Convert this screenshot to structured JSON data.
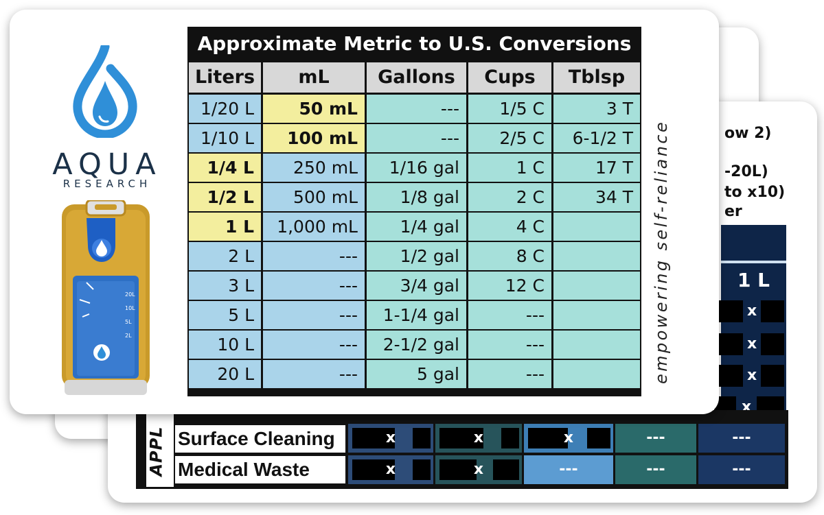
{
  "back_card": {
    "notes": [
      "ow 2)",
      "-20L)",
      "to x10)",
      "er"
    ],
    "dark_column_value": "1 L",
    "mark": "x",
    "side_label": "APPL",
    "rows": [
      {
        "label": "Surface Cleaning",
        "cells": [
          "x",
          "x",
          "x",
          "---",
          "---"
        ]
      },
      {
        "label": "Medical Waste",
        "cells": [
          "x",
          "x",
          "---",
          "---",
          "---"
        ]
      }
    ]
  },
  "logo": {
    "brand": "AQUA",
    "sub": "RESEARCH",
    "icon": "water-drop-icon"
  },
  "device": {
    "icon": "h2go-purifier-device"
  },
  "table": {
    "title": "Approximate Metric to U.S. Conversions",
    "headers": [
      "Liters",
      "mL",
      "Gallons",
      "Cups",
      "Tblsp"
    ],
    "rows": [
      [
        "1/20 L",
        "50 mL",
        "---",
        "1/5 C",
        "3 T"
      ],
      [
        "1/10 L",
        "100 mL",
        "---",
        "2/5 C",
        "6-1/2 T"
      ],
      [
        "1/4 L",
        "250 mL",
        "1/16 gal",
        "1 C",
        "17 T"
      ],
      [
        "1/2 L",
        "500 mL",
        "1/8 gal",
        "2 C",
        "34 T"
      ],
      [
        "1 L",
        "1,000 mL",
        "1/4 gal",
        "4 C",
        ""
      ],
      [
        "2 L",
        "---",
        "1/2 gal",
        "8 C",
        ""
      ],
      [
        "3 L",
        "---",
        "3/4 gal",
        "12 C",
        ""
      ],
      [
        "5 L",
        "---",
        "1-1/4 gal",
        "---",
        ""
      ],
      [
        "10 L",
        "---",
        "2-1/2 gal",
        "---",
        ""
      ],
      [
        "20 L",
        "---",
        "5 gal",
        "---",
        ""
      ]
    ]
  },
  "tagline": "empowering self-reliance",
  "colors": {
    "header_bg": "#111111",
    "liters_bg": "#aad4ea",
    "ml_bg": "#aad4ea",
    "gallons_bg": "#a6e0da",
    "highlight": "#f3ee9e",
    "brand_blue": "#2f8fd8",
    "navy": "#0e2548"
  }
}
